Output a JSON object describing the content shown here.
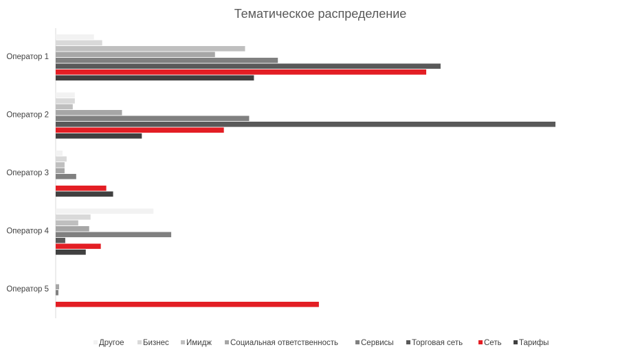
{
  "chart_data": {
    "type": "bar",
    "orientation": "horizontal",
    "title": "Тематическое распределение",
    "categories": [
      "Оператор 1",
      "Оператор 2",
      "Оператор 3",
      "Оператор 4",
      "Оператор 5"
    ],
    "series": [
      {
        "name": "Другое",
        "color": "#f2f2f2",
        "values": [
          56,
          28,
          10,
          143,
          0
        ]
      },
      {
        "name": "Бизнес",
        "color": "#d9d9d9",
        "values": [
          68,
          28,
          16,
          51,
          0
        ]
      },
      {
        "name": "Имидж",
        "color": "#bfbfbf",
        "values": [
          277,
          25,
          13,
          33,
          0
        ]
      },
      {
        "name": "Социальная ответственность",
        "color": "#a6a6a6",
        "values": [
          233,
          97,
          13,
          49,
          5
        ]
      },
      {
        "name": "Сервисы",
        "color": "#808080",
        "values": [
          325,
          283,
          30,
          169,
          4
        ]
      },
      {
        "name": "Торговая сеть",
        "color": "#595959",
        "values": [
          563,
          731,
          0,
          14,
          0
        ]
      },
      {
        "name": "Сеть",
        "color": "#e31e24",
        "values": [
          542,
          246,
          74,
          66,
          385
        ]
      },
      {
        "name": "Тарифы",
        "color": "#404040",
        "values": [
          290,
          126,
          84,
          44,
          0
        ]
      }
    ],
    "xlim": [
      0,
      850
    ],
    "grid": false,
    "legend": "bottom"
  }
}
